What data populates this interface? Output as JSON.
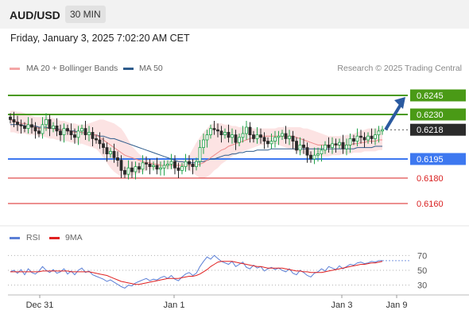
{
  "header": {
    "pair": "AUD/USD",
    "timeframe": "30 MIN"
  },
  "datetime": "Friday, January 3, 2025 7:02:20 AM CET",
  "legend": {
    "ma20": {
      "label": "MA 20 + Bollinger Bands",
      "color": "#f4a6a6"
    },
    "ma50": {
      "label": "MA 50",
      "color": "#2e5c8c"
    },
    "credit": "Research © 2025 Trading Central"
  },
  "rsi_legend": {
    "rsi": {
      "label": "RSI",
      "color": "#5b7fd6"
    },
    "ma9": {
      "label": "9MA",
      "color": "#e02020"
    }
  },
  "colors": {
    "green": "#4a9a16",
    "blue": "#3d78f0",
    "red": "#d92020",
    "arrow": "#2a5aa0",
    "price_tag": "#2b2b2b"
  },
  "chart_data": [
    {
      "type": "candlestick",
      "title": "AUD/USD 30 MIN",
      "ylim": [
        0.615,
        0.6255
      ],
      "x_ticks": [
        "Dec 31",
        "Jan 1",
        "Jan 3",
        "Jan 9"
      ],
      "levels": [
        {
          "value": 0.6245,
          "label": "0.6245",
          "kind": "target",
          "color": "#4a9a16"
        },
        {
          "value": 0.623,
          "label": "0.6230",
          "kind": "resistance",
          "color": "#4a9a16"
        },
        {
          "value": 0.6218,
          "label": "0.6218",
          "kind": "last-price",
          "color": "#2b2b2b"
        },
        {
          "value": 0.6195,
          "label": "0.6195",
          "kind": "pivot",
          "color": "#3d78f0"
        },
        {
          "value": 0.618,
          "label": "0.6180",
          "kind": "support",
          "color": "#d92020"
        },
        {
          "value": 0.616,
          "label": "0.6160",
          "kind": "support",
          "color": "#d92020"
        }
      ],
      "close": [
        0.6226,
        0.6224,
        0.6222,
        0.6221,
        0.6219,
        0.6222,
        0.622,
        0.6217,
        0.6215,
        0.6222,
        0.6226,
        0.6219,
        0.6221,
        0.6217,
        0.6214,
        0.6219,
        0.6217,
        0.6214,
        0.6212,
        0.6217,
        0.6219,
        0.6214,
        0.6216,
        0.6211,
        0.621,
        0.6207,
        0.6204,
        0.6199,
        0.6201,
        0.6196,
        0.6194,
        0.6186,
        0.6183,
        0.6188,
        0.6185,
        0.6189,
        0.6187,
        0.6192,
        0.6191,
        0.6189,
        0.619,
        0.6187,
        0.6188,
        0.619,
        0.6191,
        0.6193,
        0.6188,
        0.6186,
        0.6189,
        0.6193,
        0.6191,
        0.6189,
        0.6193,
        0.6204,
        0.621,
        0.6214,
        0.6219,
        0.6218,
        0.6217,
        0.6214,
        0.6216,
        0.6212,
        0.6214,
        0.6208,
        0.6212,
        0.6215,
        0.622,
        0.6214,
        0.6211,
        0.6214,
        0.6212,
        0.6209,
        0.6207,
        0.6209,
        0.6212,
        0.6213,
        0.6215,
        0.6211,
        0.6213,
        0.6209,
        0.6202,
        0.6206,
        0.6204,
        0.6198,
        0.6195,
        0.6198,
        0.6199,
        0.6202,
        0.6206,
        0.6204,
        0.6207,
        0.6206,
        0.6208,
        0.6203,
        0.6206,
        0.6211,
        0.6209,
        0.6213,
        0.6212,
        0.621,
        0.6213,
        0.6211,
        0.6214,
        0.6217,
        0.6218
      ],
      "ma20": [
        0.6226,
        0.6225,
        0.6224,
        0.6223,
        0.6223,
        0.6222,
        0.6221,
        0.622,
        0.6219,
        0.6219,
        0.6219,
        0.6219,
        0.6219,
        0.6218,
        0.6218,
        0.6218,
        0.6217,
        0.6217,
        0.6216,
        0.6216,
        0.6216,
        0.6215,
        0.6215,
        0.6214,
        0.6214,
        0.6212,
        0.621,
        0.6208,
        0.6206,
        0.6204,
        0.6202,
        0.62,
        0.6198,
        0.6197,
        0.6196,
        0.6195,
        0.6194,
        0.6193,
        0.6192,
        0.6192,
        0.6191,
        0.6191,
        0.619,
        0.619,
        0.619,
        0.619,
        0.619,
        0.619,
        0.619,
        0.619,
        0.619,
        0.619,
        0.619,
        0.6191,
        0.6192,
        0.6194,
        0.6196,
        0.6198,
        0.62,
        0.6202,
        0.6203,
        0.6205,
        0.6206,
        0.6207,
        0.6208,
        0.6209,
        0.621,
        0.6211,
        0.6212,
        0.6213,
        0.6213,
        0.6213,
        0.6213,
        0.6213,
        0.6213,
        0.6213,
        0.6213,
        0.6213,
        0.6213,
        0.6213,
        0.6212,
        0.6211,
        0.621,
        0.6209,
        0.6208,
        0.6207,
        0.6206,
        0.6206,
        0.6206,
        0.6206,
        0.6206,
        0.6206,
        0.6206,
        0.6206,
        0.6206,
        0.6206,
        0.6207,
        0.6207,
        0.6208,
        0.6208,
        0.6209,
        0.6209,
        0.6209,
        0.621,
        0.621
      ],
      "bb_upper": [
        0.6233,
        0.6233,
        0.6232,
        0.6232,
        0.6231,
        0.623,
        0.6229,
        0.6228,
        0.6228,
        0.6228,
        0.6228,
        0.6228,
        0.6227,
        0.6226,
        0.6225,
        0.6225,
        0.6224,
        0.6223,
        0.6223,
        0.6222,
        0.6222,
        0.6222,
        0.6223,
        0.6224,
        0.6225,
        0.6226,
        0.6226,
        0.6225,
        0.6224,
        0.6223,
        0.6221,
        0.6219,
        0.6215,
        0.621,
        0.6205,
        0.6202,
        0.6199,
        0.6197,
        0.6196,
        0.6195,
        0.6195,
        0.6194,
        0.6194,
        0.6194,
        0.6194,
        0.6194,
        0.6194,
        0.6194,
        0.6194,
        0.6195,
        0.6198,
        0.6203,
        0.6208,
        0.6212,
        0.6216,
        0.6219,
        0.6222,
        0.6223,
        0.6223,
        0.6223,
        0.6222,
        0.6222,
        0.6221,
        0.6221,
        0.622,
        0.622,
        0.622,
        0.622,
        0.6219,
        0.6219,
        0.6219,
        0.6219,
        0.6219,
        0.6219,
        0.6219,
        0.622,
        0.622,
        0.622,
        0.622,
        0.622,
        0.622,
        0.622,
        0.6219,
        0.6219,
        0.6218,
        0.6217,
        0.6216,
        0.6215,
        0.6214,
        0.6213,
        0.6213,
        0.6213,
        0.6213,
        0.6213,
        0.6214,
        0.6214,
        0.6215,
        0.6216,
        0.6217,
        0.6218,
        0.6219,
        0.6219,
        0.6219,
        0.6219,
        0.6219
      ],
      "bb_lower": [
        0.6216,
        0.6216,
        0.6215,
        0.6215,
        0.6215,
        0.6214,
        0.6214,
        0.6214,
        0.6213,
        0.6213,
        0.6212,
        0.6211,
        0.6211,
        0.621,
        0.621,
        0.6209,
        0.6209,
        0.6208,
        0.6208,
        0.6207,
        0.6207,
        0.6206,
        0.6205,
        0.6204,
        0.6203,
        0.62,
        0.6196,
        0.6192,
        0.6188,
        0.6185,
        0.6183,
        0.6181,
        0.6181,
        0.6181,
        0.6182,
        0.6183,
        0.6184,
        0.6185,
        0.6186,
        0.6187,
        0.6187,
        0.6187,
        0.6187,
        0.6187,
        0.6187,
        0.6187,
        0.6187,
        0.6187,
        0.6187,
        0.6187,
        0.6186,
        0.6184,
        0.6182,
        0.618,
        0.618,
        0.6181,
        0.6183,
        0.6186,
        0.6188,
        0.6191,
        0.6193,
        0.6195,
        0.6197,
        0.6199,
        0.62,
        0.6201,
        0.6202,
        0.6203,
        0.6204,
        0.6205,
        0.6206,
        0.6206,
        0.6207,
        0.6207,
        0.6207,
        0.6206,
        0.6205,
        0.6204,
        0.6203,
        0.6202,
        0.6201,
        0.62,
        0.6199,
        0.6198,
        0.6197,
        0.6197,
        0.6197,
        0.6197,
        0.6197,
        0.6197,
        0.6198,
        0.6198,
        0.6198,
        0.6199,
        0.6199,
        0.6199,
        0.62,
        0.62,
        0.62,
        0.6201,
        0.6201,
        0.6201,
        0.6201,
        0.6202,
        0.6202
      ],
      "ma50": [
        0.6222,
        0.6222,
        0.6222,
        0.6222,
        0.6221,
        0.6221,
        0.6221,
        0.6221,
        0.622,
        0.622,
        0.622,
        0.6219,
        0.6219,
        0.6219,
        0.6218,
        0.6218,
        0.6218,
        0.6217,
        0.6217,
        0.6216,
        0.6216,
        0.6215,
        0.6215,
        0.6214,
        0.6214,
        0.6213,
        0.6213,
        0.6212,
        0.6211,
        0.6211,
        0.621,
        0.6209,
        0.6208,
        0.6207,
        0.6206,
        0.6205,
        0.6204,
        0.6203,
        0.6202,
        0.6201,
        0.62,
        0.6199,
        0.6198,
        0.6197,
        0.6196,
        0.6195,
        0.6194,
        0.6193,
        0.6193,
        0.6192,
        0.6192,
        0.6192,
        0.6192,
        0.6193,
        0.6193,
        0.6194,
        0.6195,
        0.6195,
        0.6196,
        0.6197,
        0.6198,
        0.6198,
        0.6199,
        0.6199,
        0.62,
        0.62,
        0.6201,
        0.6201,
        0.6201,
        0.6202,
        0.6202,
        0.6202,
        0.6202,
        0.6203,
        0.6203,
        0.6203,
        0.6203,
        0.6203,
        0.6203,
        0.6203,
        0.6203,
        0.6203,
        0.6203,
        0.6203,
        0.6203,
        0.6203,
        0.6203,
        0.6203,
        0.6203,
        0.6203,
        0.6203,
        0.6203,
        0.6203,
        0.6203,
        0.6203,
        0.6203,
        0.6203,
        0.6204,
        0.6204,
        0.6204,
        0.6204,
        0.6204,
        0.6205,
        0.6205,
        0.6205
      ]
    },
    {
      "type": "line",
      "title": "RSI",
      "ylim": [
        20,
        80
      ],
      "y_ticks": [
        70,
        50,
        30
      ],
      "series": [
        {
          "name": "RSI",
          "values": [
            48,
            50,
            46,
            51,
            44,
            52,
            47,
            45,
            49,
            55,
            50,
            47,
            51,
            46,
            48,
            52,
            45,
            49,
            44,
            50,
            53,
            47,
            49,
            44,
            42,
            40,
            38,
            35,
            37,
            34,
            31,
            28,
            26,
            30,
            29,
            33,
            35,
            37,
            39,
            36,
            38,
            37,
            40,
            42,
            39,
            43,
            38,
            36,
            41,
            45,
            47,
            43,
            46,
            55,
            62,
            68,
            65,
            70,
            66,
            62,
            60,
            58,
            62,
            55,
            58,
            61,
            54,
            52,
            57,
            53,
            55,
            49,
            52,
            54,
            51,
            53,
            50,
            48,
            52,
            46,
            44,
            50,
            47,
            43,
            41,
            46,
            48,
            52,
            49,
            55,
            53,
            51,
            56,
            52,
            55,
            58,
            57,
            60,
            61,
            59,
            60,
            62,
            61,
            63,
            63
          ]
        },
        {
          "name": "9MA",
          "values": [
            48,
            48,
            48,
            48,
            48,
            48,
            48,
            48,
            48,
            49,
            49,
            49,
            49,
            49,
            49,
            49,
            49,
            48,
            48,
            48,
            48,
            48,
            48,
            47,
            46,
            45,
            44,
            43,
            41,
            39,
            37,
            35,
            34,
            33,
            32,
            31,
            31,
            32,
            33,
            34,
            35,
            36,
            37,
            38,
            39,
            39,
            39,
            39,
            40,
            41,
            42,
            42,
            43,
            45,
            48,
            51,
            55,
            58,
            61,
            62,
            62,
            62,
            62,
            61,
            60,
            59,
            58,
            57,
            56,
            55,
            55,
            54,
            53,
            53,
            53,
            53,
            53,
            52,
            51,
            50,
            49,
            49,
            48,
            48,
            47,
            47,
            47,
            47,
            48,
            49,
            50,
            51,
            52,
            53,
            54,
            55,
            56,
            57,
            58,
            58,
            59,
            60,
            60,
            61,
            62
          ]
        }
      ]
    }
  ]
}
